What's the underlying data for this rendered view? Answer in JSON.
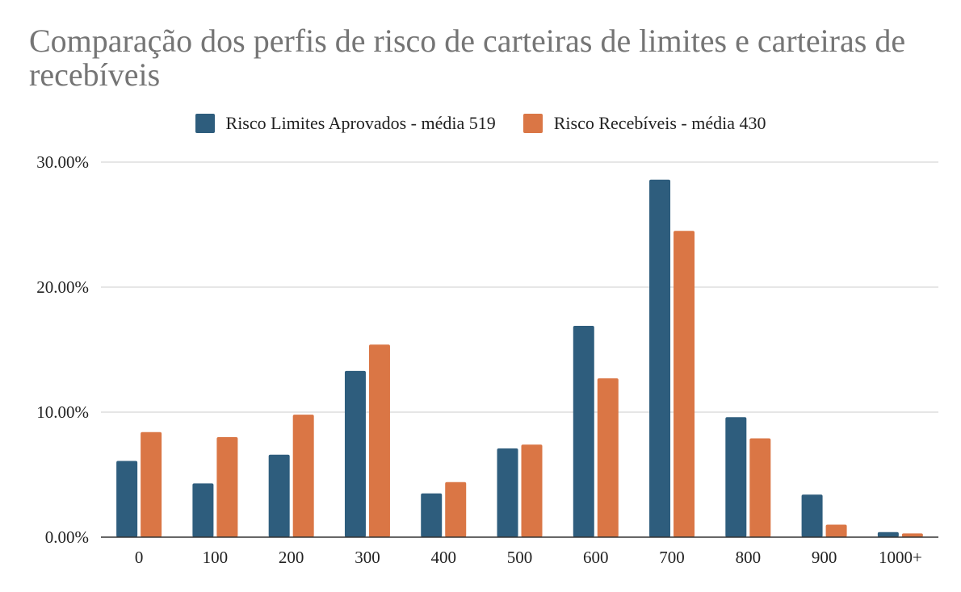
{
  "chart_data": {
    "type": "bar",
    "title": "Comparação dos perfis de risco de carteiras de limites e carteiras de recebíveis",
    "categories": [
      "0",
      "100",
      "200",
      "300",
      "400",
      "500",
      "600",
      "700",
      "800",
      "900",
      "1000+"
    ],
    "series": [
      {
        "name": "Risco Limites Aprovados - média 519",
        "color": "#2e5d7d",
        "values": [
          6.1,
          4.3,
          6.6,
          13.3,
          3.5,
          7.1,
          16.9,
          28.6,
          9.6,
          3.4,
          0.4
        ]
      },
      {
        "name": "Risco Recebíveis - média 430",
        "color": "#da7645",
        "values": [
          8.4,
          8.0,
          9.8,
          15.4,
          4.4,
          7.4,
          12.7,
          24.5,
          7.9,
          1.0,
          0.3
        ]
      }
    ],
    "y_ticks": [
      "0.00%",
      "10.00%",
      "20.00%",
      "30.00%"
    ],
    "ylim": [
      0,
      30
    ],
    "xlabel": "",
    "ylabel": "",
    "grid": true,
    "legend_position": "top"
  }
}
